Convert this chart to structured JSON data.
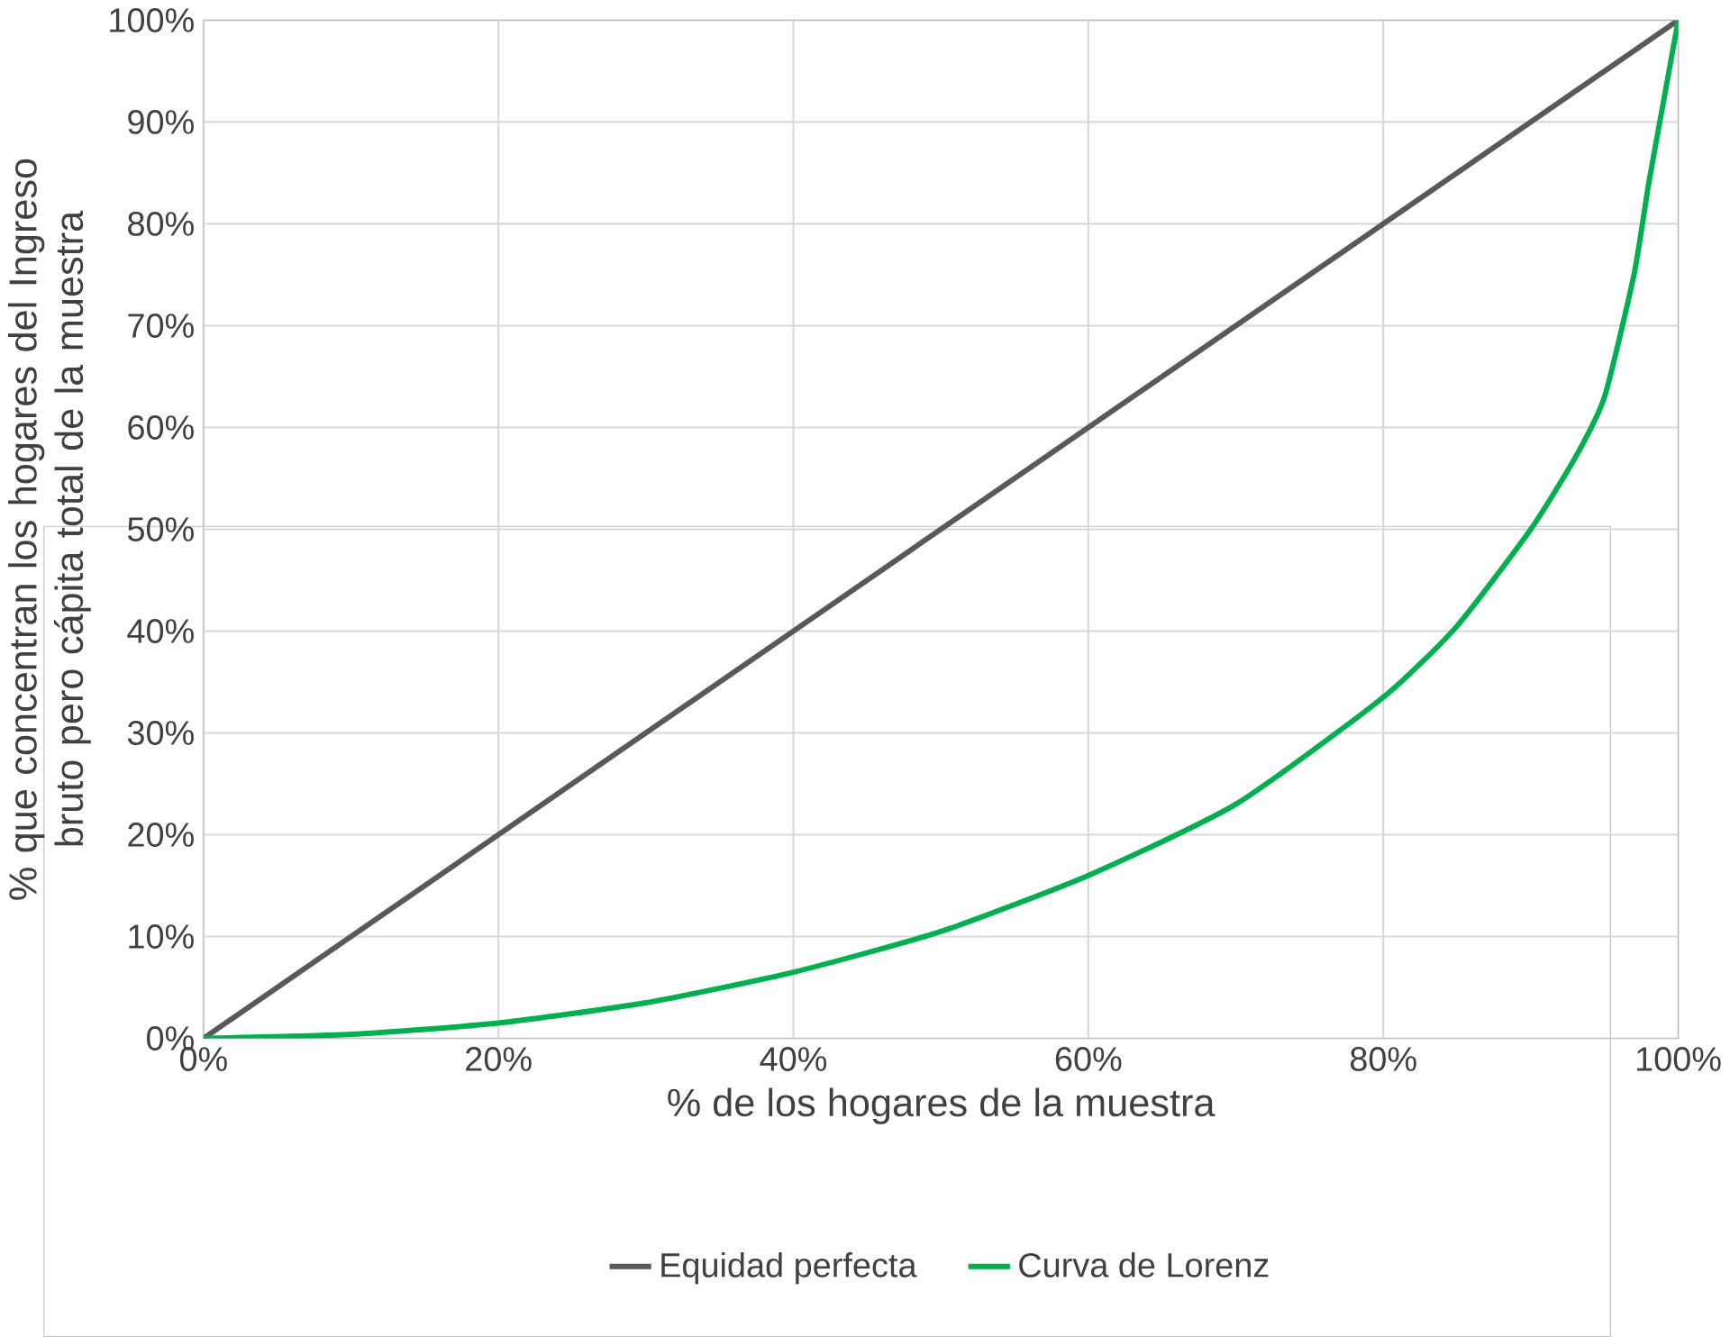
{
  "chart_data": {
    "type": "line",
    "xlabel": "% de los hogares de la muestra",
    "ylabel": "% que concentran los hogares del Ingreso bruto pero cápita total de la muestra",
    "xlim": [
      0,
      100
    ],
    "ylim": [
      0,
      100
    ],
    "xticks": [
      {
        "value": 0,
        "label": "0%"
      },
      {
        "value": 20,
        "label": "20%"
      },
      {
        "value": 40,
        "label": "40%"
      },
      {
        "value": 60,
        "label": "60%"
      },
      {
        "value": 80,
        "label": "80%"
      },
      {
        "value": 100,
        "label": "100%"
      }
    ],
    "yticks": [
      {
        "value": 0,
        "label": "0%"
      },
      {
        "value": 10,
        "label": "10%"
      },
      {
        "value": 20,
        "label": "20%"
      },
      {
        "value": 30,
        "label": "30%"
      },
      {
        "value": 40,
        "label": "40%"
      },
      {
        "value": 50,
        "label": "50%"
      },
      {
        "value": 60,
        "label": "60%"
      },
      {
        "value": 70,
        "label": "70%"
      },
      {
        "value": 80,
        "label": "80%"
      },
      {
        "value": 90,
        "label": "90%"
      },
      {
        "value": 100,
        "label": "100%"
      }
    ],
    "grid": true,
    "legend": "bottom",
    "marker": "none",
    "line_style": "solid",
    "series": [
      {
        "name": "Equidad perfecta",
        "color": "#595959",
        "x": [
          0,
          100
        ],
        "values": [
          0,
          100
        ]
      },
      {
        "name": "Curva de Lorenz",
        "color": "#00b050",
        "x": [
          0,
          10,
          20,
          30,
          40,
          50,
          60,
          70,
          80,
          85,
          90,
          93,
          95,
          97,
          98,
          99,
          100
        ],
        "values": [
          0,
          0.4,
          1.5,
          3.5,
          6.5,
          10.5,
          16,
          23,
          33.5,
          40.5,
          50,
          57,
          63,
          75,
          84,
          92,
          100
        ]
      }
    ]
  }
}
